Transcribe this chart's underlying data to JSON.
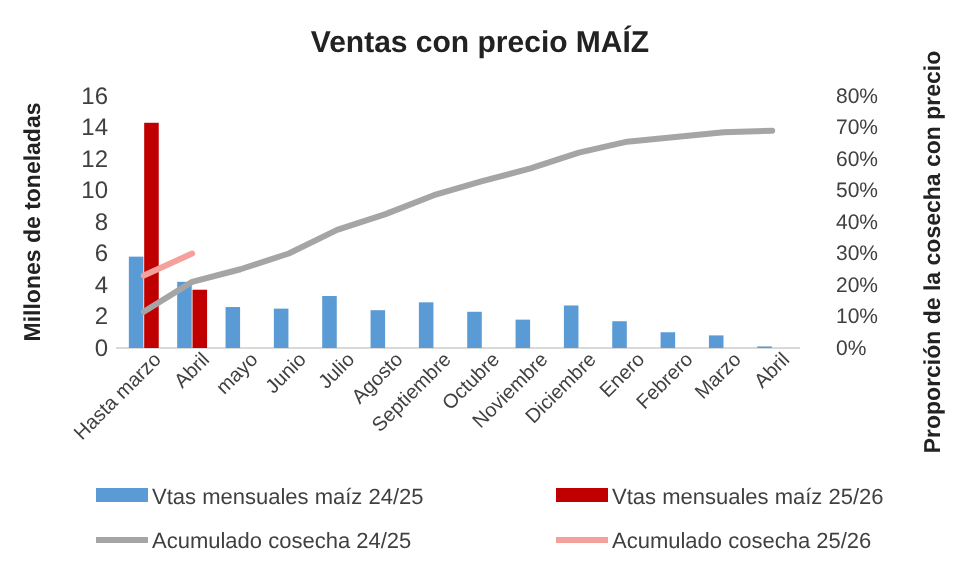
{
  "chart_data": {
    "type": "bar",
    "title": "Ventas con precio MAÍZ",
    "ylabel": "Millones de toneladas",
    "y2label": "Proporción de la cosecha con precio",
    "categories": [
      "Hasta marzo",
      "Abril",
      "mayo",
      "Junio",
      "Julio",
      "Agosto",
      "Septiembre",
      "Octubre",
      "Noviembre",
      "Diciembre",
      "Enero",
      "Febrero",
      "Marzo",
      "Abril"
    ],
    "series": [
      {
        "name": "Vtas mensuales maíz 24/25",
        "color": "#5b9bd5",
        "values": [
          5.8,
          4.2,
          2.6,
          2.5,
          3.3,
          2.4,
          2.9,
          2.3,
          1.8,
          2.7,
          1.7,
          1.0,
          0.8,
          0.1
        ]
      },
      {
        "name": "Vtas mensuales maíz 25/26",
        "color": "#c00000",
        "values": [
          14.3,
          3.7,
          null,
          null,
          null,
          null,
          null,
          null,
          null,
          null,
          null,
          null,
          null,
          null
        ]
      },
      {
        "name": "Acumulado cosecha 24/25",
        "type": "line",
        "axis": "y2",
        "color": "#a5a5a5",
        "values": [
          11.5,
          21,
          25,
          30,
          37.5,
          42.5,
          48.5,
          53,
          57,
          62,
          65.5,
          67,
          68.5,
          69
        ]
      },
      {
        "name": "Acumulado cosecha 25/26",
        "type": "line",
        "axis": "y2",
        "color": "#f4a09c",
        "values": [
          23,
          30,
          null,
          null,
          null,
          null,
          null,
          null,
          null,
          null,
          null,
          null,
          null,
          null
        ]
      }
    ],
    "ylim": [
      0,
      16
    ],
    "yticks": [
      0,
      2,
      4,
      6,
      8,
      10,
      12,
      14,
      16
    ],
    "y2lim": [
      0,
      80
    ],
    "y2ticks": [
      {
        "value": 0,
        "label": "0%"
      },
      {
        "value": 10,
        "label": "10%"
      },
      {
        "value": 20,
        "label": "20%"
      },
      {
        "value": 30,
        "label": "30%"
      },
      {
        "value": 40,
        "label": "40%"
      },
      {
        "value": 50,
        "label": "50%"
      },
      {
        "value": 60,
        "label": "60%"
      },
      {
        "value": 70,
        "label": "70%"
      },
      {
        "value": 80,
        "label": "80%"
      }
    ],
    "grid": false,
    "legend": "bottom"
  }
}
